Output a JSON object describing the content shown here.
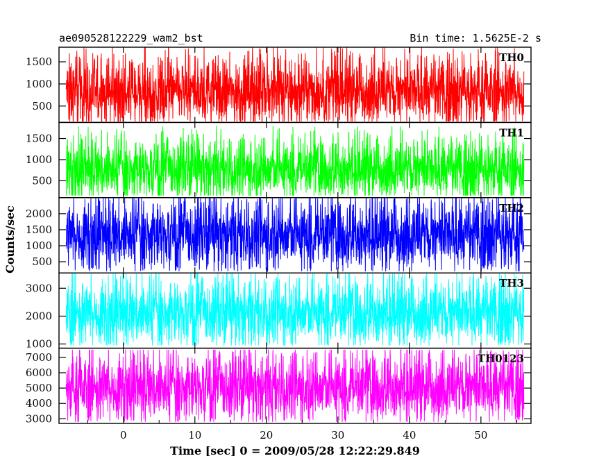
{
  "header": {
    "title": "ae090528122229_wam2_bst",
    "bin_time": "Bin time: 1.5625E-2 s"
  },
  "chart_data": {
    "type": "line",
    "title": "ae090528122229_wam2_bst",
    "xlabel": "Time [sec] 0 = 2009/05/28 12:22:29.849",
    "ylabel": "Counts/sec",
    "x_range": [
      -9,
      57
    ],
    "data_x_range": [
      -8,
      56
    ],
    "x_ticks": [
      0,
      10,
      20,
      30,
      40,
      50
    ],
    "x_tick_labels": [
      "0",
      "10",
      "20",
      "30",
      "40",
      "50"
    ],
    "grid": false,
    "legend": "none",
    "panels": [
      {
        "name": "TH0",
        "color": "#ff0000",
        "ylim": [
          130,
          1830
        ],
        "y_ticks": [
          500,
          1000,
          1500
        ],
        "y_tick_labels": [
          "500",
          "1000",
          "1500"
        ],
        "mean": 820,
        "band_low": 230,
        "band_high": 1400,
        "peak_max": 1830,
        "trough_min": 150
      },
      {
        "name": "TH1",
        "color": "#00ff00",
        "ylim": [
          100,
          1880
        ],
        "y_ticks": [
          500,
          1000,
          1500
        ],
        "y_tick_labels": [
          "500",
          "1000",
          "1500"
        ],
        "mean": 760,
        "band_low": 200,
        "band_high": 1300,
        "peak_max": 1880,
        "trough_min": 150
      },
      {
        "name": "TH2",
        "color": "#0000ff",
        "ylim": [
          150,
          2500
        ],
        "y_ticks": [
          500,
          1000,
          1500,
          2000
        ],
        "y_tick_labels": [
          "500",
          "1000",
          "1500",
          "2000"
        ],
        "mean": 1320,
        "band_low": 400,
        "band_high": 2100,
        "peak_max": 2500,
        "trough_min": 200
      },
      {
        "name": "TH3",
        "color": "#00ffff",
        "ylim": [
          850,
          3550
        ],
        "y_ticks": [
          1000,
          2000,
          3000
        ],
        "y_tick_labels": [
          "1000",
          "2000",
          "3000"
        ],
        "mean": 2100,
        "band_low": 1150,
        "band_high": 3000,
        "peak_max": 3550,
        "trough_min": 950
      },
      {
        "name": "TH0123",
        "color": "#ff00ff",
        "ylim": [
          2700,
          7600
        ],
        "y_ticks": [
          3000,
          4000,
          5000,
          6000,
          7000
        ],
        "y_tick_labels": [
          "3000",
          "4000",
          "5000",
          "6000",
          "7000"
        ],
        "mean": 5000,
        "band_low": 3200,
        "band_high": 6600,
        "peak_max": 7500,
        "trough_min": 2800
      }
    ]
  }
}
